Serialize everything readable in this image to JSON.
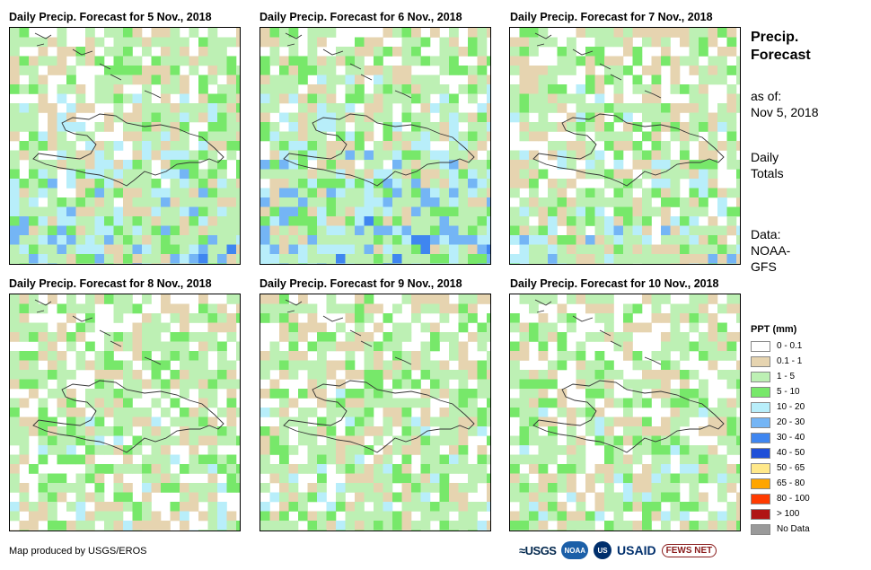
{
  "panels": [
    {
      "title": "Daily Precip. Forecast for 5 Nov., 2018"
    },
    {
      "title": "Daily Precip. Forecast for 6 Nov., 2018"
    },
    {
      "title": "Daily Precip. Forecast for 7 Nov., 2018"
    },
    {
      "title": "Daily Precip. Forecast for 8 Nov., 2018"
    },
    {
      "title": "Daily Precip. Forecast for 9 Nov., 2018"
    },
    {
      "title": "Daily Precip. Forecast for 10 Nov., 2018"
    }
  ],
  "side": {
    "title_line1": "Precip.",
    "title_line2": "Forecast",
    "asof_label": "as of:",
    "asof_date": "Nov 5, 2018",
    "totals_line1": "Daily",
    "totals_line2": "Totals",
    "data_label": "Data:",
    "data_line1": "NOAA-",
    "data_line2": "GFS"
  },
  "legend": {
    "title": "PPT (mm)",
    "items": [
      {
        "label": "0 - 0.1",
        "color": "#ffffff"
      },
      {
        "label": "0.1 - 1",
        "color": "#e6d4b0"
      },
      {
        "label": "1 - 5",
        "color": "#bdf0b4"
      },
      {
        "label": "5 - 10",
        "color": "#77e86a"
      },
      {
        "label": "10 - 20",
        "color": "#b8eefa"
      },
      {
        "label": "20 - 30",
        "color": "#74b5f5"
      },
      {
        "label": "30 - 40",
        "color": "#3f86f0"
      },
      {
        "label": "40 - 50",
        "color": "#1f4fd8"
      },
      {
        "label": "50 - 65",
        "color": "#ffe88a"
      },
      {
        "label": "65 - 80",
        "color": "#ffa500"
      },
      {
        "label": "80 - 100",
        "color": "#ff3b00"
      },
      {
        "label": "> 100",
        "color": "#b01515"
      },
      {
        "label": "No Data",
        "color": "#9a9a9a"
      }
    ]
  },
  "credit": "Map produced by USGS/EROS",
  "logos": {
    "usgs": "≈USGS",
    "noaa": "NOAA",
    "usaid_seal": "US",
    "usaid": "USAID",
    "fews": "FEWS NET"
  }
}
